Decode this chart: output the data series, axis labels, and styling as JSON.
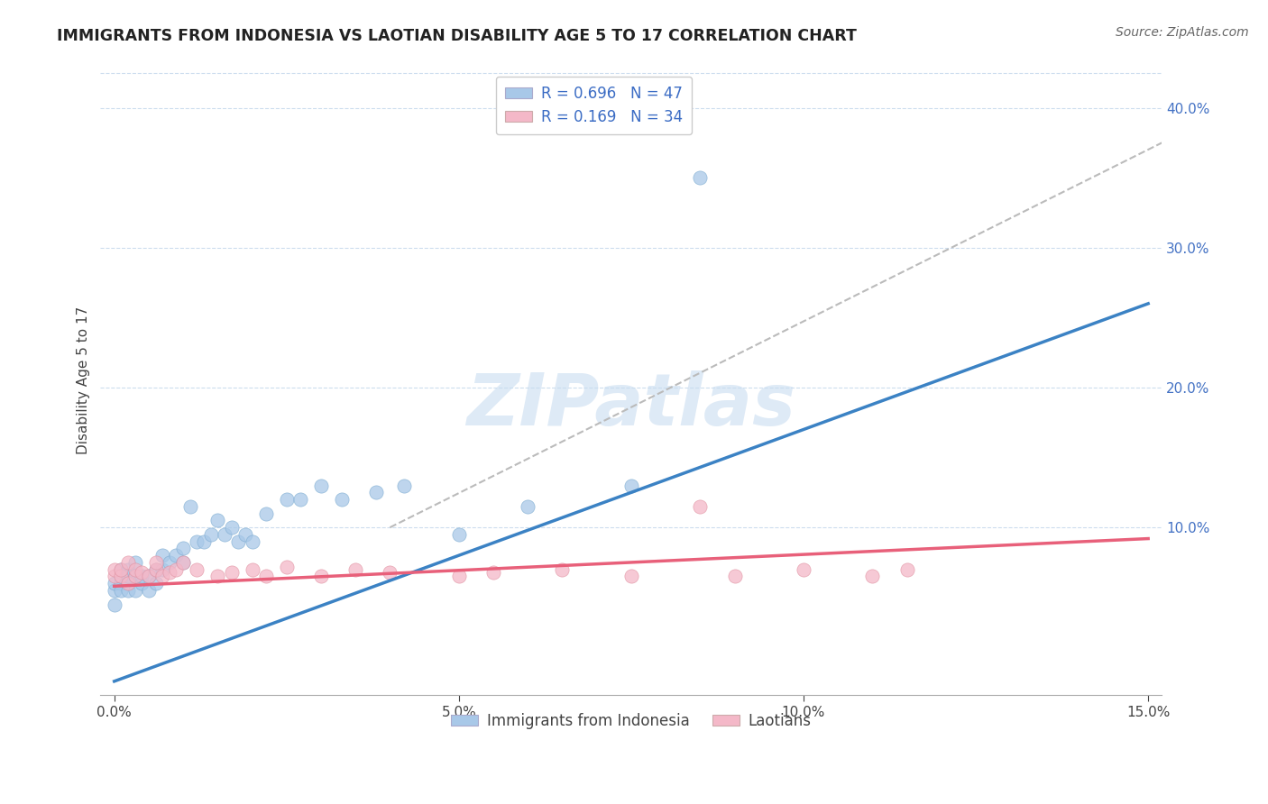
{
  "title": "IMMIGRANTS FROM INDONESIA VS LAOTIAN DISABILITY AGE 5 TO 17 CORRELATION CHART",
  "source_text": "Source: ZipAtlas.com",
  "ylabel": "Disability Age 5 to 17",
  "x_label_bottom": "Immigrants from Indonesia",
  "xlim": [
    -0.002,
    0.152
  ],
  "ylim": [
    -0.02,
    0.43
  ],
  "xticks": [
    0.0,
    0.05,
    0.1,
    0.15
  ],
  "xtick_labels": [
    "0.0%",
    "5.0%",
    "10.0%",
    "15.0%"
  ],
  "yticks": [
    0.1,
    0.2,
    0.3,
    0.4
  ],
  "ytick_labels": [
    "10.0%",
    "20.0%",
    "30.0%",
    "40.0%"
  ],
  "watermark": "ZIPatlas",
  "legend1_label": "R = 0.696   N = 47",
  "legend2_label": "R = 0.169   N = 34",
  "legend_bottom_label1": "Immigrants from Indonesia",
  "legend_bottom_label2": "Laotians",
  "blue_color": "#A8C8E8",
  "pink_color": "#F4B8C8",
  "blue_line_color": "#3B82C4",
  "pink_line_color": "#E8607A",
  "dash_line_color": "#BBBBBB",
  "blue_line_x": [
    0.0,
    0.15
  ],
  "blue_line_y": [
    -0.01,
    0.26
  ],
  "pink_line_x": [
    0.0,
    0.15
  ],
  "pink_line_y": [
    0.058,
    0.092
  ],
  "dash_line_x": [
    0.04,
    0.152
  ],
  "dash_line_y": [
    0.1,
    0.375
  ],
  "blue_scatter_x": [
    0.0,
    0.0,
    0.0,
    0.001,
    0.001,
    0.001,
    0.001,
    0.002,
    0.002,
    0.002,
    0.002,
    0.003,
    0.003,
    0.003,
    0.004,
    0.004,
    0.005,
    0.005,
    0.006,
    0.006,
    0.007,
    0.007,
    0.008,
    0.009,
    0.01,
    0.01,
    0.011,
    0.012,
    0.013,
    0.014,
    0.015,
    0.016,
    0.017,
    0.018,
    0.019,
    0.02,
    0.022,
    0.025,
    0.027,
    0.03,
    0.033,
    0.038,
    0.042,
    0.05,
    0.06,
    0.075,
    0.085
  ],
  "blue_scatter_y": [
    0.055,
    0.06,
    0.045,
    0.07,
    0.06,
    0.055,
    0.065,
    0.06,
    0.07,
    0.055,
    0.065,
    0.075,
    0.065,
    0.055,
    0.06,
    0.065,
    0.065,
    0.055,
    0.07,
    0.06,
    0.08,
    0.07,
    0.075,
    0.08,
    0.075,
    0.085,
    0.115,
    0.09,
    0.09,
    0.095,
    0.105,
    0.095,
    0.1,
    0.09,
    0.095,
    0.09,
    0.11,
    0.12,
    0.12,
    0.13,
    0.12,
    0.125,
    0.13,
    0.095,
    0.115,
    0.13,
    0.35
  ],
  "pink_scatter_x": [
    0.0,
    0.0,
    0.001,
    0.001,
    0.002,
    0.002,
    0.003,
    0.003,
    0.004,
    0.005,
    0.006,
    0.006,
    0.007,
    0.008,
    0.009,
    0.01,
    0.012,
    0.015,
    0.017,
    0.02,
    0.022,
    0.025,
    0.03,
    0.035,
    0.04,
    0.05,
    0.055,
    0.065,
    0.075,
    0.085,
    0.09,
    0.1,
    0.11,
    0.115
  ],
  "pink_scatter_y": [
    0.065,
    0.07,
    0.065,
    0.07,
    0.06,
    0.075,
    0.065,
    0.07,
    0.068,
    0.065,
    0.07,
    0.075,
    0.065,
    0.068,
    0.07,
    0.075,
    0.07,
    0.065,
    0.068,
    0.07,
    0.065,
    0.072,
    0.065,
    0.07,
    0.068,
    0.065,
    0.068,
    0.07,
    0.065,
    0.115,
    0.065,
    0.07,
    0.065,
    0.07
  ]
}
